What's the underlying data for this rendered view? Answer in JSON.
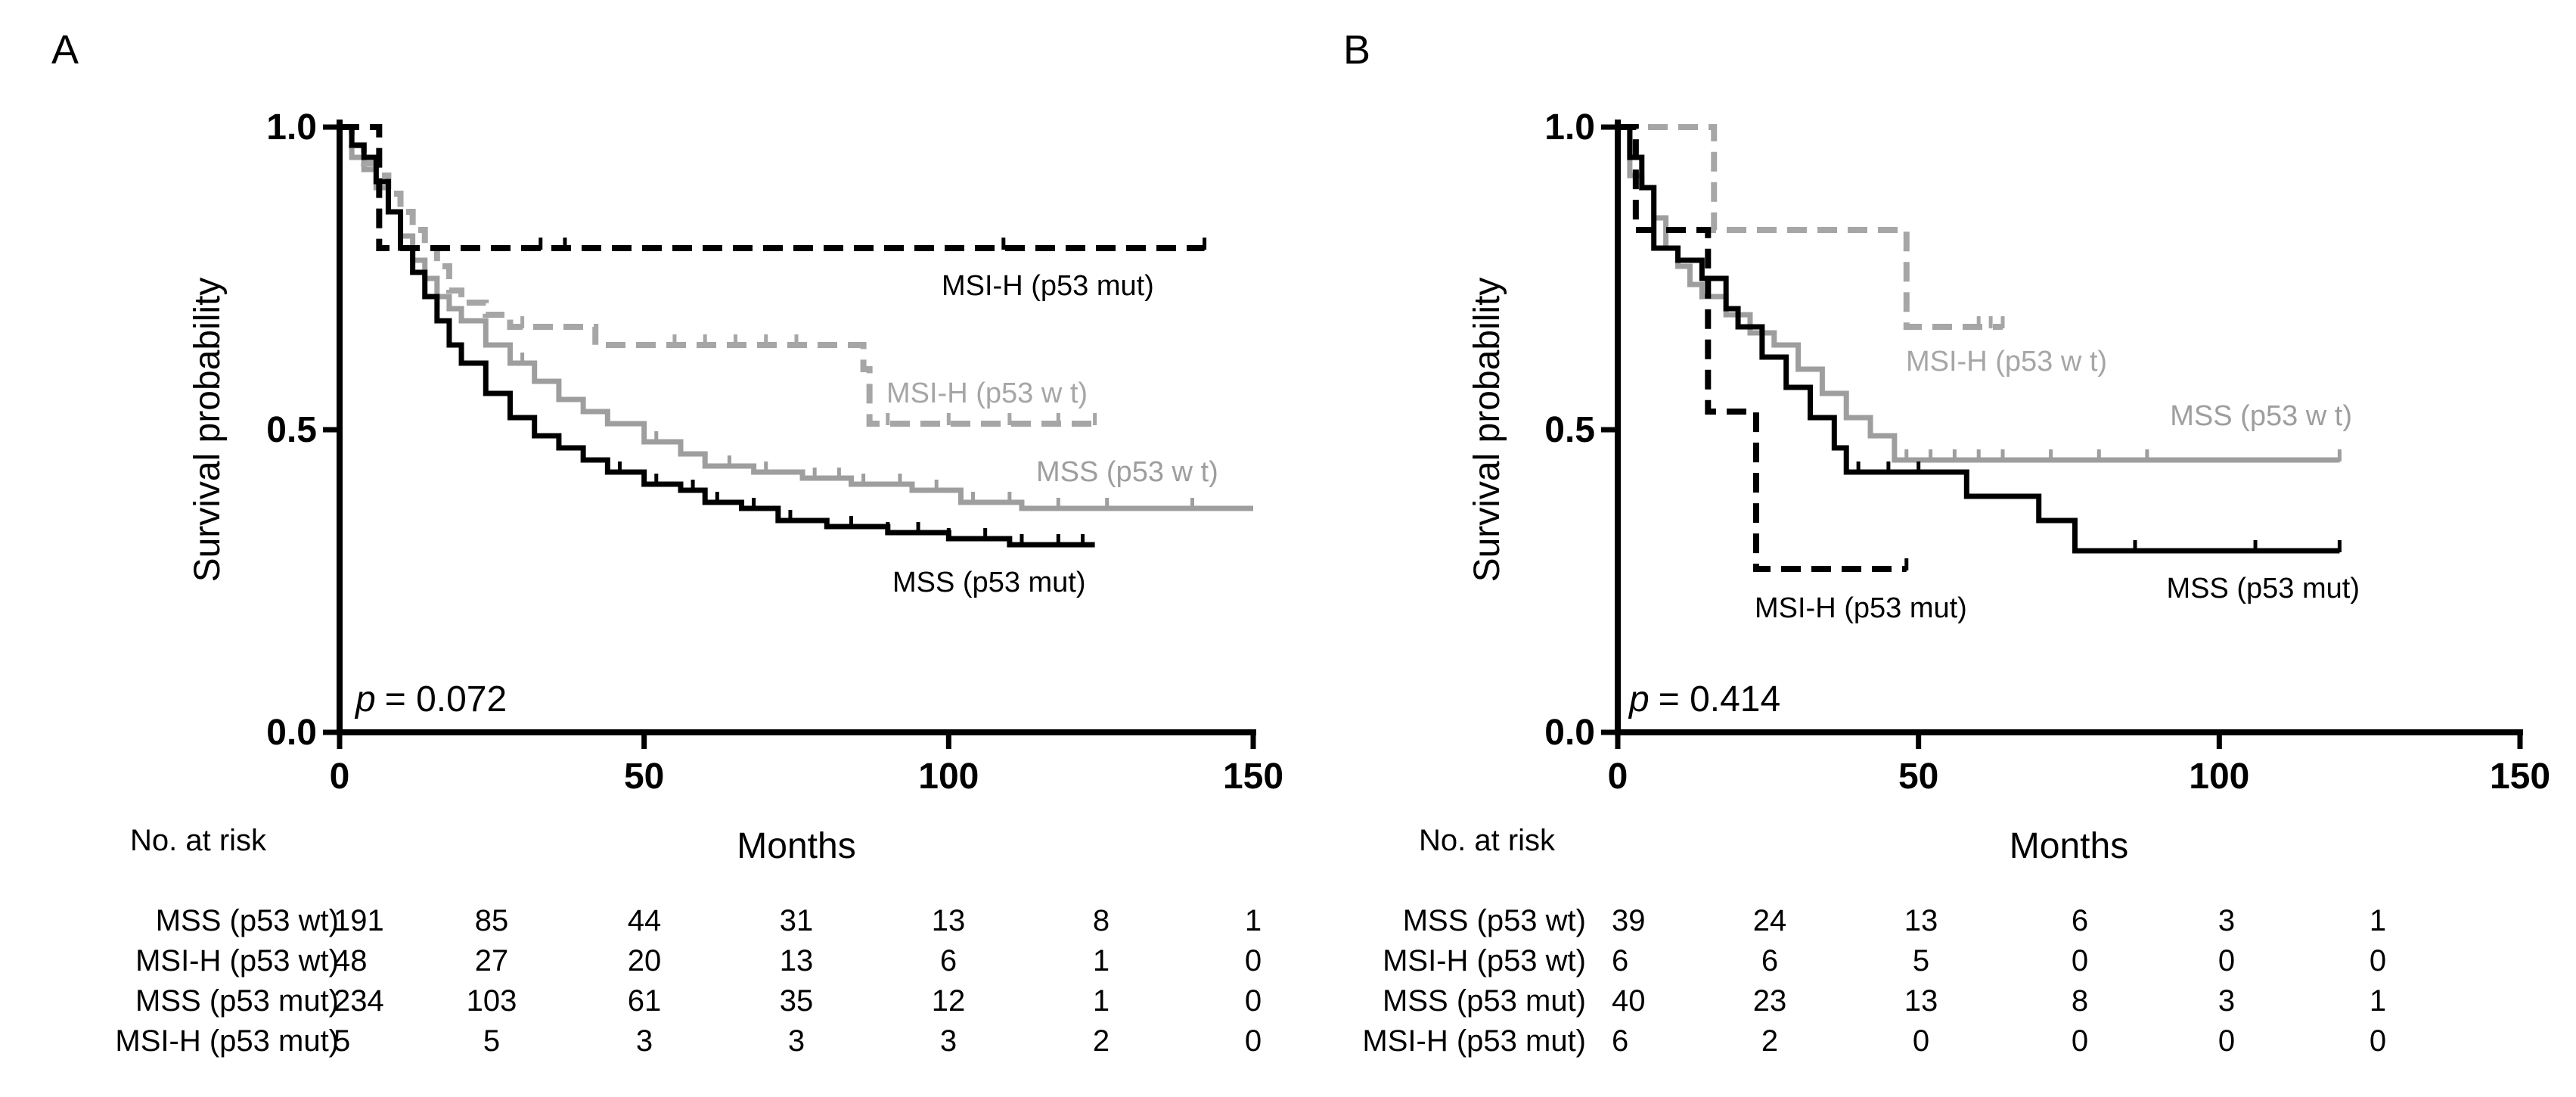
{
  "chart_data": [
    {
      "type": "line",
      "panel": "A",
      "xlabel": "Months",
      "ylabel": "Survival probability",
      "xlim": [
        0,
        150
      ],
      "ylim": [
        0,
        1
      ],
      "xticks": [
        "0",
        "50",
        "100",
        "150"
      ],
      "yticks": [
        "0.0",
        "0.5",
        "1.0"
      ],
      "p_label": "p",
      "p_value": "= 0.072",
      "series": [
        {
          "name": "MSS (p53 wt)",
          "label": "MSS (p53 w t)",
          "color": "#9e9e9e",
          "dash": "solid",
          "x": [
            0,
            2,
            4,
            6,
            8,
            10,
            12,
            14,
            16,
            18,
            20,
            24,
            28,
            32,
            36,
            40,
            44,
            50,
            56,
            60,
            68,
            76,
            84,
            94,
            102,
            112,
            124,
            136,
            150
          ],
          "y": [
            1.0,
            0.95,
            0.93,
            0.9,
            0.86,
            0.82,
            0.78,
            0.75,
            0.72,
            0.7,
            0.68,
            0.64,
            0.61,
            0.58,
            0.55,
            0.53,
            0.51,
            0.48,
            0.46,
            0.44,
            0.43,
            0.42,
            0.41,
            0.4,
            0.38,
            0.37,
            0.37,
            0.37,
            0.37
          ],
          "censor_x": [
            30,
            36,
            44,
            52,
            60,
            64,
            70,
            78,
            82,
            86,
            92,
            98,
            104,
            110,
            118,
            126,
            140
          ]
        },
        {
          "name": "MSI-H (p53 wt)",
          "label": "MSI-H (p53 w t)",
          "color": "#a6a6a6",
          "dash": "dashed",
          "x": [
            0,
            2,
            4,
            6,
            8,
            10,
            12,
            14,
            16,
            18,
            20,
            24,
            28,
            35,
            42,
            48,
            86,
            87,
            125
          ],
          "y": [
            1.0,
            0.97,
            0.94,
            0.92,
            0.89,
            0.86,
            0.83,
            0.8,
            0.77,
            0.73,
            0.71,
            0.69,
            0.67,
            0.67,
            0.64,
            0.64,
            0.6,
            0.51,
            0.51
          ],
          "censor_x": [
            30,
            55,
            60,
            65,
            70,
            75,
            90,
            100,
            110,
            118,
            124
          ]
        },
        {
          "name": "MSS (p53 mut)",
          "label": "MSS (p53 mut)",
          "color": "#000000",
          "dash": "solid",
          "x": [
            0,
            2,
            4,
            6,
            8,
            10,
            12,
            14,
            16,
            18,
            20,
            24,
            28,
            32,
            36,
            40,
            44,
            50,
            56,
            60,
            66,
            72,
            80,
            90,
            100,
            110,
            124
          ],
          "y": [
            1.0,
            0.97,
            0.95,
            0.91,
            0.86,
            0.8,
            0.76,
            0.72,
            0.68,
            0.64,
            0.61,
            0.56,
            0.52,
            0.49,
            0.47,
            0.45,
            0.43,
            0.41,
            0.4,
            0.38,
            0.37,
            0.35,
            0.34,
            0.33,
            0.32,
            0.31,
            0.31
          ],
          "censor_x": [
            46,
            52,
            58,
            62,
            68,
            74,
            84,
            90,
            95,
            100,
            106,
            112,
            118,
            122
          ]
        },
        {
          "name": "MSI-H (p53 mut)",
          "label": "MSI-H (p53 mut)",
          "color": "#000000",
          "dash": "dashed",
          "x": [
            0,
            6.5,
            6.5,
            142
          ],
          "y": [
            1.0,
            1.0,
            0.8,
            0.8
          ],
          "censor_x": [
            33,
            37,
            109,
            142
          ]
        }
      ],
      "risk_table": {
        "title": "No. at risk",
        "times": [
          0,
          25,
          50,
          75,
          100,
          125,
          150
        ],
        "rows": [
          {
            "label": "MSS (p53 wt)",
            "values": [
              "191",
              "85",
              "44",
              "31",
              "13",
              "8",
              "1"
            ]
          },
          {
            "label": "MSI-H (p53 wt)",
            "values": [
              "48",
              "27",
              "20",
              "13",
              "6",
              "1",
              "0"
            ]
          },
          {
            "label": "MSS (p53 mut)",
            "values": [
              "234",
              "103",
              "61",
              "35",
              "12",
              "1",
              "0"
            ]
          },
          {
            "label": "MSI-H (p53 mut)",
            "values": [
              "5",
              "5",
              "3",
              "3",
              "3",
              "2",
              "0"
            ]
          }
        ]
      }
    },
    {
      "type": "line",
      "panel": "B",
      "xlabel": "Months",
      "ylabel": "Survival probability",
      "xlim": [
        0,
        150
      ],
      "ylim": [
        0,
        1
      ],
      "xticks": [
        "0",
        "50",
        "100",
        "150"
      ],
      "yticks": [
        "0.0",
        "0.5",
        "1.0"
      ],
      "p_label": "p",
      "p_value": "= 0.414",
      "series": [
        {
          "name": "MSS (p53 wt)",
          "label": "MSS (p53 w t)",
          "color": "#9e9e9e",
          "dash": "solid",
          "x": [
            0,
            2,
            4,
            6,
            8,
            10,
            12,
            14,
            18,
            22,
            26,
            30,
            34,
            38,
            42,
            46,
            50,
            120
          ],
          "y": [
            1.0,
            0.92,
            0.9,
            0.85,
            0.8,
            0.77,
            0.74,
            0.72,
            0.69,
            0.66,
            0.64,
            0.6,
            0.56,
            0.52,
            0.49,
            0.45,
            0.45,
            0.45
          ],
          "censor_x": [
            48,
            52,
            56,
            60,
            64,
            72,
            80,
            88,
            120
          ]
        },
        {
          "name": "MSI-H (p53 wt)",
          "label": "MSI-H (p53 w t)",
          "color": "#a6a6a6",
          "dash": "dashed",
          "x": [
            0,
            16,
            16,
            48,
            48,
            64
          ],
          "y": [
            1.0,
            1.0,
            0.83,
            0.83,
            0.67,
            0.67
          ],
          "censor_x": [
            60,
            62,
            64
          ]
        },
        {
          "name": "MSS (p53 mut)",
          "label": "MSS (p53 mut)",
          "color": "#000000",
          "dash": "solid",
          "x": [
            0,
            2,
            4,
            6,
            10,
            14,
            18,
            20,
            24,
            28,
            32,
            36,
            38,
            50,
            58,
            70,
            76,
            120
          ],
          "y": [
            1.0,
            0.95,
            0.9,
            0.8,
            0.78,
            0.75,
            0.7,
            0.67,
            0.62,
            0.57,
            0.52,
            0.47,
            0.43,
            0.43,
            0.39,
            0.35,
            0.3,
            0.3
          ],
          "censor_x": [
            40,
            45,
            50,
            86,
            106,
            120
          ]
        },
        {
          "name": "MSI-H (p53 mut)",
          "label": "MSI-H (p53 mut)",
          "color": "#000000",
          "dash": "dashed",
          "x": [
            0,
            3,
            3,
            15,
            15,
            23,
            23,
            48
          ],
          "y": [
            1.0,
            1.0,
            0.83,
            0.83,
            0.53,
            0.53,
            0.27,
            0.27
          ],
          "censor_x": [
            48
          ]
        }
      ],
      "risk_table": {
        "title": "No. at risk",
        "times": [
          0,
          25,
          50,
          75,
          100,
          125
        ],
        "rows": [
          {
            "label": "MSS (p53 wt)",
            "values": [
              "39",
              "24",
              "13",
              "6",
              "3",
              "1"
            ]
          },
          {
            "label": "MSI-H (p53 wt)",
            "values": [
              "6",
              "6",
              "5",
              "0",
              "0",
              "0"
            ]
          },
          {
            "label": "MSS (p53 mut)",
            "values": [
              "40",
              "23",
              "13",
              "8",
              "3",
              "1"
            ]
          },
          {
            "label": "MSI-H (p53 mut)",
            "values": [
              "6",
              "2",
              "0",
              "0",
              "0",
              "0"
            ]
          }
        ]
      }
    }
  ]
}
